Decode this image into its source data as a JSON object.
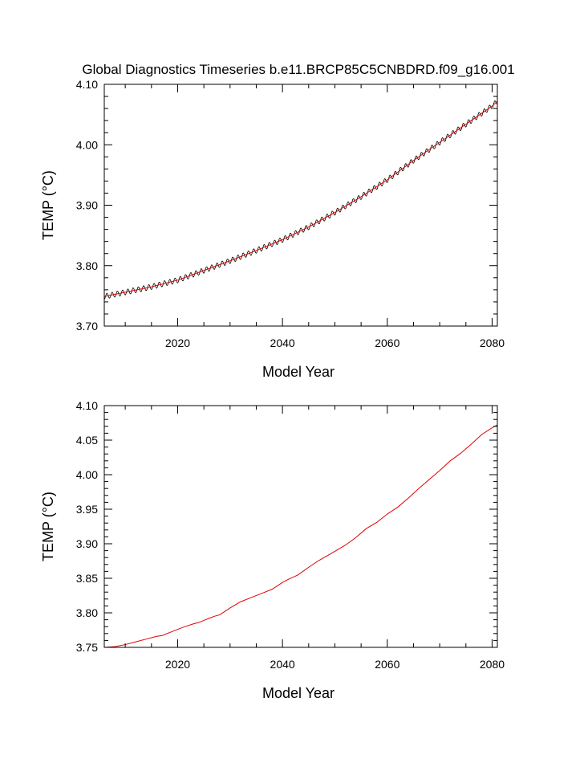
{
  "title": "Global Diagnostics Timeseries b.e11.BRCP85C5CNBDRD.f09_g16.001",
  "colors": {
    "monthly": "#000000",
    "smooth": "#e00000",
    "frame": "#000000"
  },
  "chart_data": [
    {
      "type": "line",
      "xlabel": "Model Year",
      "ylabel": "TEMP (°C)",
      "xlim": [
        2006,
        2081
      ],
      "ylim": [
        3.7,
        4.1
      ],
      "xticks": [
        2020,
        2040,
        2060,
        2080
      ],
      "xtick_labels": [
        "2020",
        "2040",
        "2060",
        "2080"
      ],
      "yticks": [
        3.7,
        3.8,
        3.9,
        4.0,
        4.1
      ],
      "ytick_labels": [
        "3.70",
        "3.80",
        "3.90",
        "4.00",
        "4.10"
      ],
      "series": [
        {
          "style": "monthly-oscillating",
          "color": "#000000",
          "cycle_amplitude": 0.0045,
          "x": [
            2006,
            2010,
            2015,
            2020,
            2025,
            2030,
            2035,
            2040,
            2045,
            2050,
            2055,
            2060,
            2065,
            2070,
            2075,
            2080,
            2081
          ],
          "y": [
            3.749,
            3.756,
            3.765,
            3.776,
            3.792,
            3.808,
            3.825,
            3.843,
            3.864,
            3.888,
            3.914,
            3.942,
            3.974,
            4.004,
            4.034,
            4.064,
            4.072
          ]
        },
        {
          "style": "annual-mean",
          "color": "#e00000",
          "x": [
            2006,
            2010,
            2015,
            2020,
            2025,
            2030,
            2035,
            2040,
            2045,
            2050,
            2055,
            2060,
            2065,
            2070,
            2075,
            2080,
            2081
          ],
          "y": [
            3.749,
            3.756,
            3.765,
            3.776,
            3.792,
            3.808,
            3.825,
            3.843,
            3.864,
            3.888,
            3.914,
            3.942,
            3.974,
            4.004,
            4.034,
            4.064,
            4.072
          ]
        }
      ]
    },
    {
      "type": "line",
      "xlabel": "Model Year",
      "ylabel": "TEMP (°C)",
      "xlim": [
        2006,
        2081
      ],
      "ylim": [
        3.75,
        4.1
      ],
      "xticks": [
        2020,
        2040,
        2060,
        2080
      ],
      "xtick_labels": [
        "2020",
        "2040",
        "2060",
        "2080"
      ],
      "yticks": [
        3.75,
        3.8,
        3.85,
        3.9,
        3.95,
        4.0,
        4.05,
        4.1
      ],
      "ytick_labels": [
        "3.75",
        "3.80",
        "3.85",
        "3.90",
        "3.95",
        "4.00",
        "4.05",
        "4.10"
      ],
      "series": [
        {
          "style": "annual-mean",
          "color": "#e00000",
          "x": [
            2006,
            2008,
            2010,
            2012,
            2014,
            2016,
            2017,
            2019,
            2021,
            2023,
            2024,
            2026,
            2027,
            2028,
            2030,
            2032,
            2034,
            2036,
            2038,
            2040,
            2041,
            2043,
            2045,
            2047,
            2050,
            2052,
            2054,
            2056,
            2058,
            2060,
            2062,
            2064,
            2066,
            2068,
            2070,
            2072,
            2074,
            2076,
            2078,
            2080,
            2081
          ],
          "y": [
            3.75,
            3.751,
            3.754,
            3.758,
            3.762,
            3.766,
            3.767,
            3.773,
            3.779,
            3.784,
            3.786,
            3.792,
            3.795,
            3.797,
            3.807,
            3.816,
            3.822,
            3.828,
            3.834,
            3.844,
            3.848,
            3.855,
            3.866,
            3.876,
            3.889,
            3.898,
            3.909,
            3.922,
            3.931,
            3.943,
            3.953,
            3.966,
            3.98,
            3.993,
            4.006,
            4.02,
            4.031,
            4.044,
            4.058,
            4.068,
            4.072
          ]
        }
      ]
    }
  ]
}
